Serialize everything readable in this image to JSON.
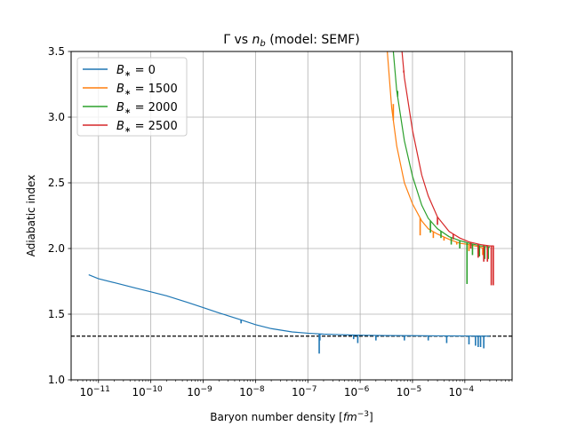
{
  "chart_data": {
    "type": "line",
    "title": "Γ vs n_b (model: SEMF)",
    "title_parts": {
      "prefix": "Γ vs ",
      "var_base": "n",
      "var_sub": "b",
      "suffix": " (model: SEMF)"
    },
    "xlabel": "Baryon number density [fm^-3]",
    "xlabel_parts": {
      "prefix": "Baryon number density [",
      "unit": "fm",
      "exp": "−3",
      "suffix": "]"
    },
    "ylabel": "Adiabatic index",
    "xscale": "log",
    "xlim": [
      3e-12,
      0.0008
    ],
    "ylim": [
      1.0,
      3.5
    ],
    "grid": true,
    "legend_position": "upper-left",
    "x_ticks": [
      {
        "value": 1e-11,
        "label": "10−11",
        "base": "10",
        "exp": "−11"
      },
      {
        "value": 1e-10,
        "label": "10−10",
        "base": "10",
        "exp": "−10"
      },
      {
        "value": 1e-09,
        "label": "10−9",
        "base": "10",
        "exp": "−9"
      },
      {
        "value": 1e-08,
        "label": "10−8",
        "base": "10",
        "exp": "−8"
      },
      {
        "value": 1e-07,
        "label": "10−7",
        "base": "10",
        "exp": "−7"
      },
      {
        "value": 1e-06,
        "label": "10−6",
        "base": "10",
        "exp": "−6"
      },
      {
        "value": 1e-05,
        "label": "10−5",
        "base": "10",
        "exp": "−5"
      },
      {
        "value": 0.0001,
        "label": "10−4",
        "base": "10",
        "exp": "−4"
      }
    ],
    "y_ticks": [
      {
        "value": 1.0,
        "label": "1.0"
      },
      {
        "value": 1.5,
        "label": "1.5"
      },
      {
        "value": 2.0,
        "label": "2.0"
      },
      {
        "value": 2.5,
        "label": "2.5"
      },
      {
        "value": 3.0,
        "label": "3.0"
      },
      {
        "value": 3.5,
        "label": "3.5"
      }
    ],
    "reference_line": {
      "y": 1.333,
      "style": "dashed",
      "color": "#000000"
    },
    "series": [
      {
        "name": "B* = 0",
        "legend_parts": {
          "sym": "B",
          "sub": "∗",
          "rest": " = 0"
        },
        "color": "#1f77b4",
        "points": [
          [
            6.5e-12,
            1.8
          ],
          [
            1e-11,
            1.77
          ],
          [
            2e-11,
            1.74
          ],
          [
            5e-11,
            1.7
          ],
          [
            1e-10,
            1.67
          ],
          [
            2e-10,
            1.64
          ],
          [
            5e-10,
            1.59
          ],
          [
            1e-09,
            1.55
          ],
          [
            2e-09,
            1.51
          ],
          [
            5e-09,
            1.46
          ],
          [
            1e-08,
            1.42
          ],
          [
            2e-08,
            1.39
          ],
          [
            5e-08,
            1.365
          ],
          [
            1e-07,
            1.355
          ],
          [
            2e-07,
            1.348
          ],
          [
            5e-07,
            1.343
          ],
          [
            1e-06,
            1.34
          ],
          [
            3e-06,
            1.337
          ],
          [
            1e-05,
            1.336
          ],
          [
            3e-05,
            1.335
          ],
          [
            0.0001,
            1.334
          ],
          [
            0.0003,
            1.333
          ]
        ],
        "spikes": [
          [
            5.3e-09,
            1.43
          ],
          [
            1.65e-07,
            1.2
          ],
          [
            1.7e-07,
            1.3
          ],
          [
            7.5e-07,
            1.31
          ],
          [
            9e-07,
            1.28
          ],
          [
            2e-06,
            1.3
          ],
          [
            7e-06,
            1.3
          ],
          [
            2e-05,
            1.3
          ],
          [
            4.5e-05,
            1.28
          ],
          [
            0.00012,
            1.27
          ],
          [
            0.00016,
            1.26
          ],
          [
            0.00018,
            1.25
          ],
          [
            0.0002,
            1.25
          ],
          [
            0.00023,
            1.24
          ]
        ]
      },
      {
        "name": "B* = 1500",
        "legend_parts": {
          "sym": "B",
          "sub": "∗",
          "rest": " = 1500"
        },
        "color": "#ff7f0e",
        "points": [
          [
            3.3e-06,
            3.5
          ],
          [
            4e-06,
            3.07
          ],
          [
            5e-06,
            2.78
          ],
          [
            7e-06,
            2.5
          ],
          [
            1e-05,
            2.34
          ],
          [
            1.5e-05,
            2.21
          ],
          [
            2e-05,
            2.15
          ],
          [
            3e-05,
            2.11
          ],
          [
            5e-05,
            2.07
          ],
          [
            8e-05,
            2.04
          ],
          [
            0.00012,
            2.03
          ],
          [
            0.0002,
            2.01
          ],
          [
            0.00024,
            2.0
          ]
        ],
        "spikes": [
          [
            4.3e-06,
            3.1
          ],
          [
            1.4e-05,
            2.1
          ],
          [
            2.5e-05,
            2.08
          ],
          [
            4e-05,
            2.06
          ],
          [
            7e-05,
            2.03
          ],
          [
            0.00012,
            1.98
          ],
          [
            0.00018,
            1.96
          ],
          [
            0.00022,
            1.95
          ]
        ]
      },
      {
        "name": "B* = 2000",
        "legend_parts": {
          "sym": "B",
          "sub": "∗",
          "rest": " = 2000"
        },
        "color": "#2ca02c",
        "points": [
          [
            4.3e-06,
            3.5
          ],
          [
            5e-06,
            3.2
          ],
          [
            7e-06,
            2.82
          ],
          [
            1e-05,
            2.55
          ],
          [
            1.5e-05,
            2.33
          ],
          [
            2e-05,
            2.23
          ],
          [
            3e-05,
            2.15
          ],
          [
            5e-05,
            2.09
          ],
          [
            8e-05,
            2.06
          ],
          [
            0.00012,
            2.04
          ],
          [
            0.0002,
            2.02
          ],
          [
            0.0003,
            2.01
          ]
        ],
        "spikes": [
          [
            5.2e-06,
            3.2
          ],
          [
            2.2e-05,
            2.12
          ],
          [
            3.5e-05,
            2.08
          ],
          [
            5.5e-05,
            2.03
          ],
          [
            8e-05,
            2.0
          ],
          [
            0.00011,
            1.73
          ],
          [
            0.00014,
            1.95
          ],
          [
            0.00019,
            1.94
          ],
          [
            0.00024,
            1.92
          ],
          [
            0.00028,
            1.92
          ]
        ]
      },
      {
        "name": "B* = 2500",
        "legend_parts": {
          "sym": "B",
          "sub": "∗",
          "rest": " = 2500"
        },
        "color": "#d62728",
        "points": [
          [
            6.3e-06,
            3.5
          ],
          [
            7e-06,
            3.3
          ],
          [
            1e-05,
            2.9
          ],
          [
            1.5e-05,
            2.56
          ],
          [
            2e-05,
            2.4
          ],
          [
            3e-05,
            2.24
          ],
          [
            5e-05,
            2.13
          ],
          [
            8e-05,
            2.08
          ],
          [
            0.00012,
            2.05
          ],
          [
            0.0002,
            2.03
          ],
          [
            0.0003,
            2.02
          ],
          [
            0.00036,
            2.02
          ]
        ],
        "spikes": [
          [
            6.8e-06,
            3.34
          ],
          [
            3e-05,
            2.18
          ],
          [
            6e-05,
            2.07
          ],
          [
            0.00013,
            2.0
          ],
          [
            0.00018,
            1.93
          ],
          [
            0.00023,
            1.9
          ],
          [
            0.00027,
            1.9
          ],
          [
            0.00032,
            1.72
          ],
          [
            0.00035,
            1.72
          ]
        ]
      }
    ]
  }
}
